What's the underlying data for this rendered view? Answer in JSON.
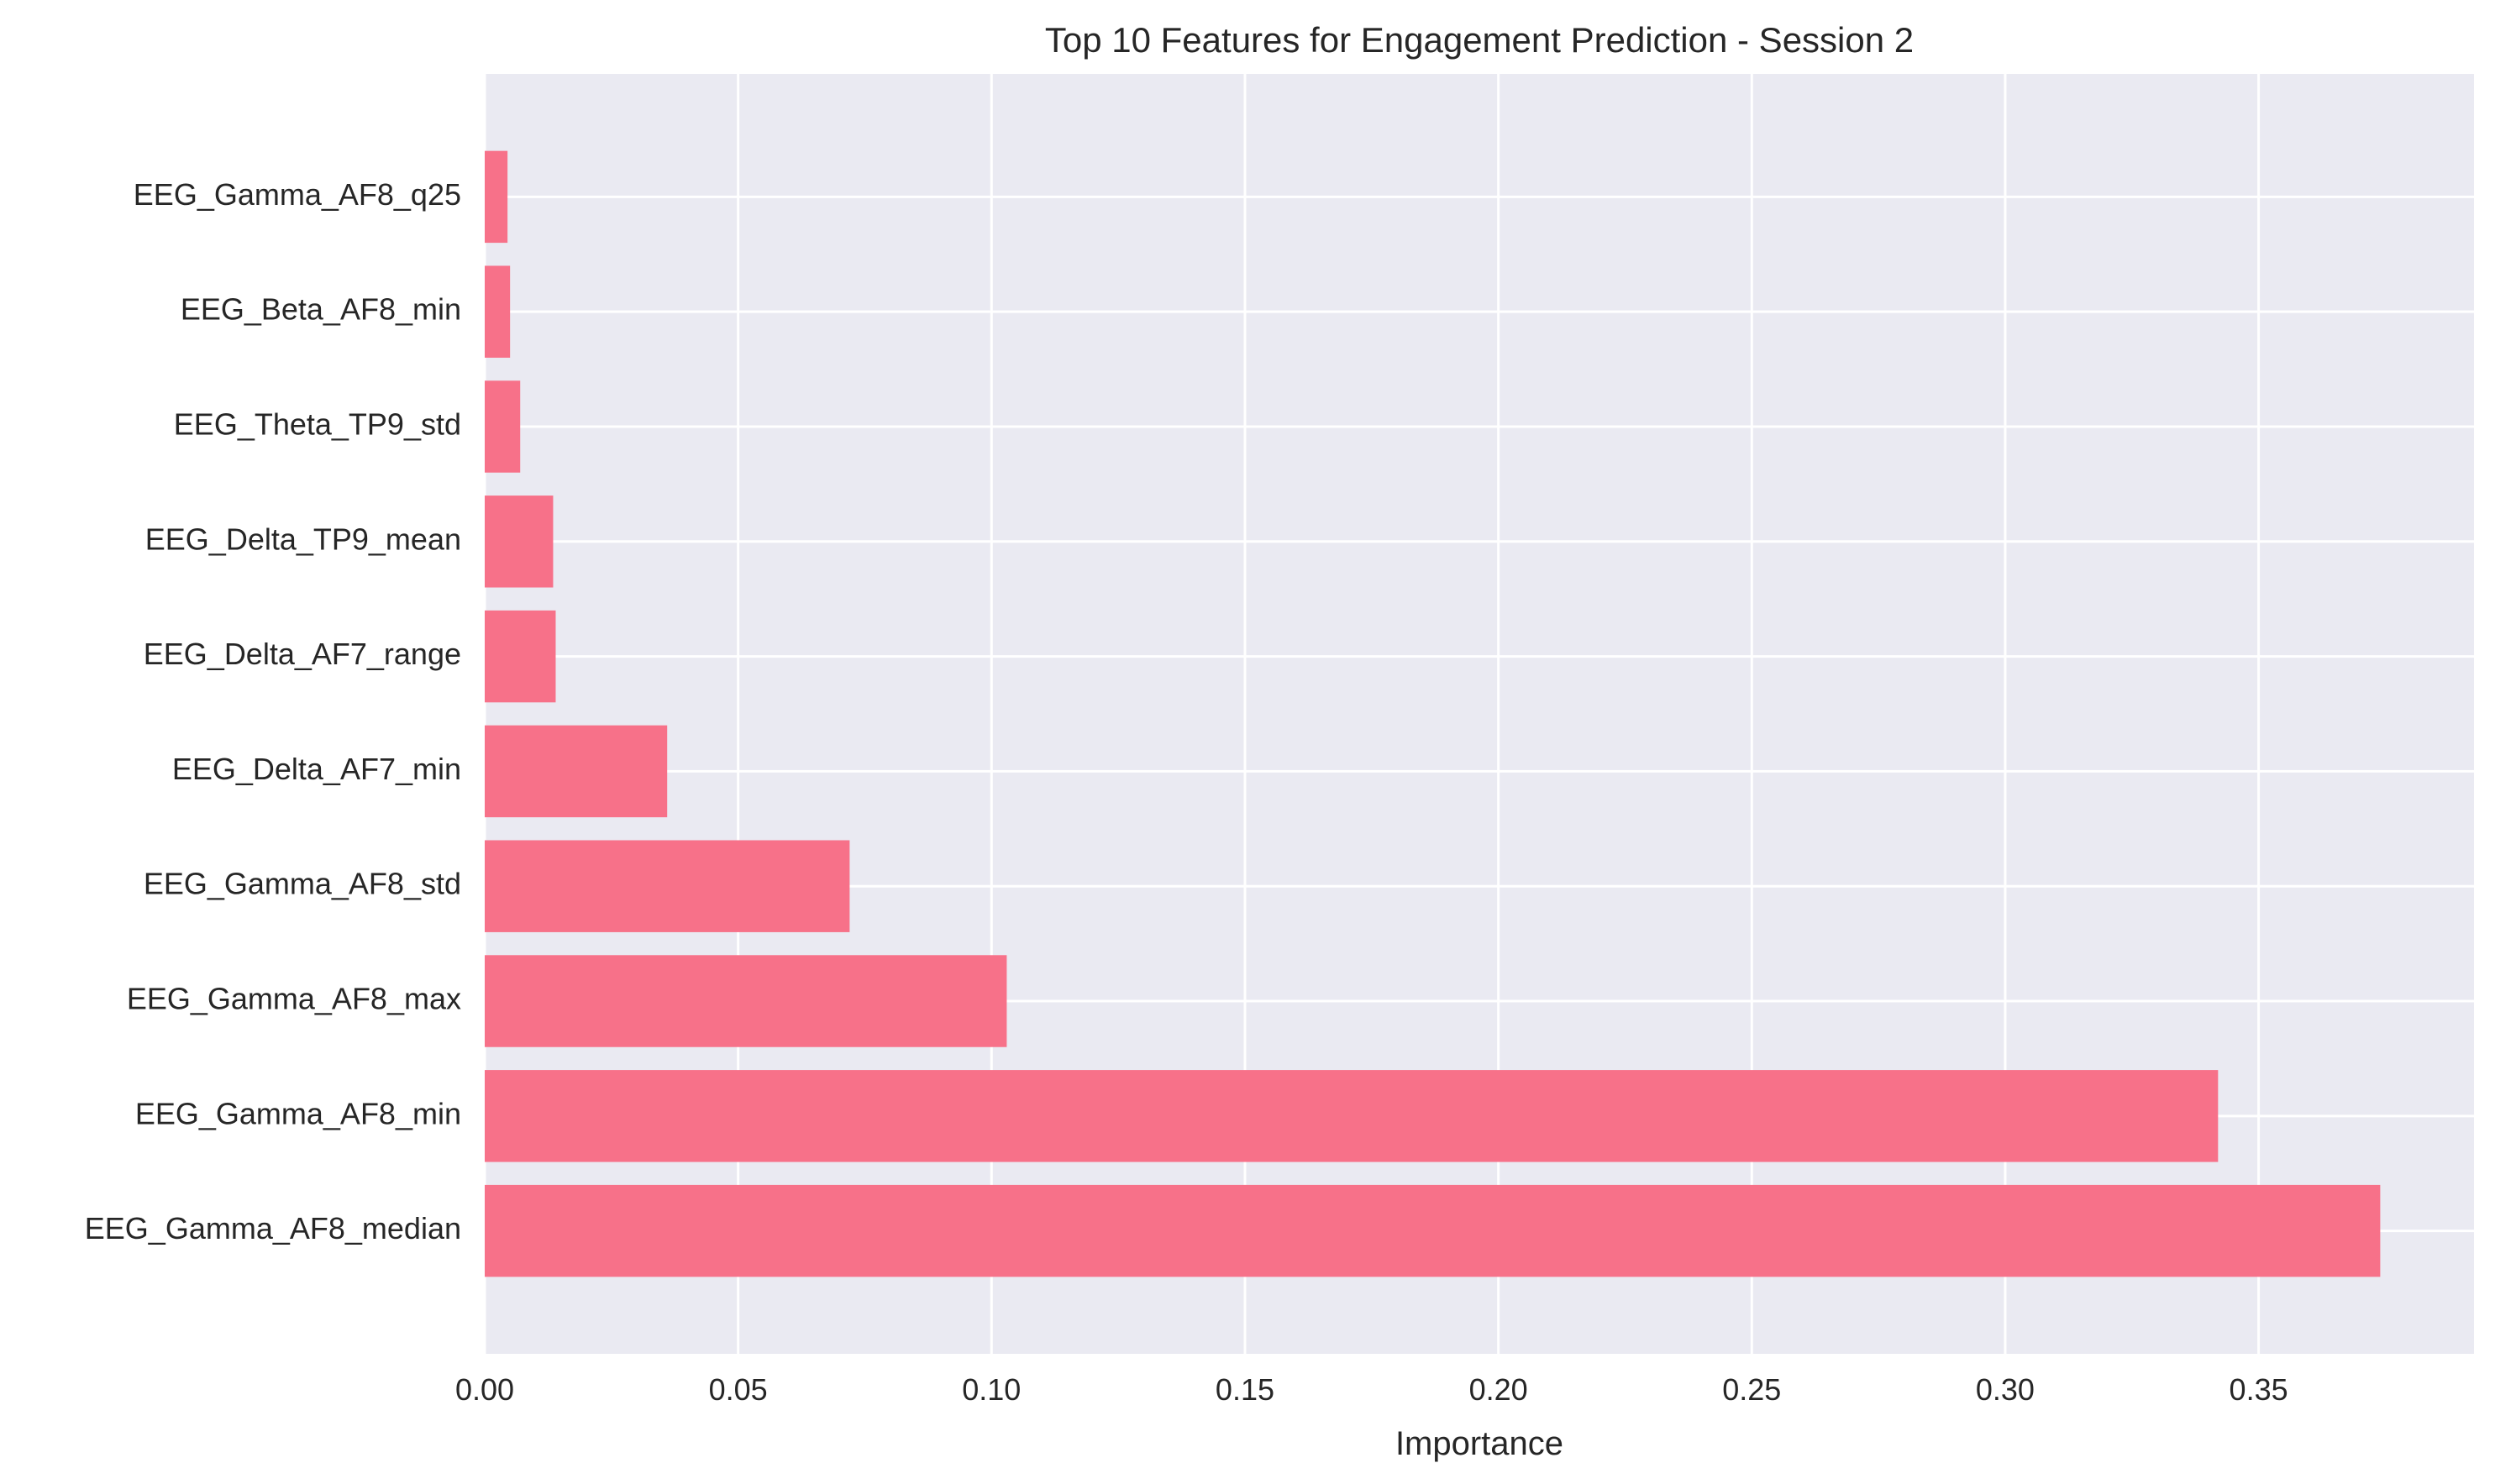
{
  "chart_data": {
    "type": "bar",
    "orientation": "horizontal",
    "title": "Top 10 Features for Engagement Prediction - Session 2",
    "xlabel": "Importance",
    "ylabel": "",
    "categories": [
      "EEG_Gamma_AF8_median",
      "EEG_Gamma_AF8_min",
      "EEG_Gamma_AF8_max",
      "EEG_Gamma_AF8_std",
      "EEG_Delta_AF7_min",
      "EEG_Delta_AF7_range",
      "EEG_Delta_TP9_mean",
      "EEG_Theta_TP9_std",
      "EEG_Beta_AF8_min",
      "EEG_Gamma_AF8_q25"
    ],
    "values": [
      0.374,
      0.342,
      0.103,
      0.072,
      0.036,
      0.014,
      0.0135,
      0.007,
      0.005,
      0.0045
    ],
    "xlim": [
      0,
      0.3925
    ],
    "xticks": [
      0.0,
      0.05,
      0.1,
      0.15,
      0.2,
      0.25,
      0.3,
      0.35
    ],
    "xtick_labels": [
      "0.00",
      "0.05",
      "0.10",
      "0.15",
      "0.20",
      "0.25",
      "0.30",
      "0.35"
    ],
    "grid": true,
    "bar_color": "#f77189",
    "background_color": "#eaeaf2"
  }
}
